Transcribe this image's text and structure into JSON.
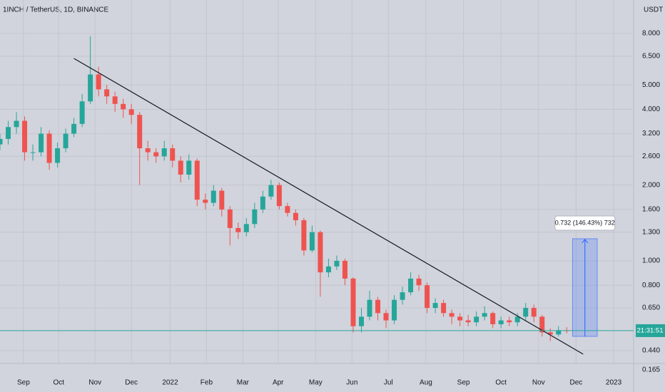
{
  "chart_data": {
    "type": "candlestick",
    "title": "1INCH / TetherUS, 1D, BINANCE",
    "currency": "USDT",
    "x": [
      0,
      7,
      14,
      21,
      28,
      35,
      42,
      49,
      56,
      63,
      70,
      77,
      84,
      91,
      98,
      105,
      112,
      119,
      126,
      133,
      140,
      147,
      154,
      161,
      168,
      175,
      182,
      189,
      196,
      203,
      210,
      217,
      224,
      231,
      238,
      245,
      252,
      259,
      266,
      273,
      280,
      287,
      294,
      301,
      308,
      315,
      322,
      329,
      336,
      343,
      350,
      357,
      364,
      371,
      378,
      385,
      392,
      399,
      406,
      413,
      420,
      427,
      434,
      441,
      448,
      455,
      462,
      469,
      476,
      483
    ],
    "open": [
      2.9,
      3.05,
      3.4,
      3.6,
      2.7,
      2.7,
      3.2,
      2.45,
      2.8,
      3.2,
      3.5,
      4.3,
      5.5,
      4.8,
      4.5,
      4.2,
      4.0,
      3.8,
      2.8,
      2.7,
      2.6,
      2.8,
      2.5,
      2.2,
      2.5,
      1.75,
      1.7,
      1.9,
      1.6,
      1.35,
      1.3,
      1.4,
      1.6,
      1.8,
      2.0,
      1.65,
      1.55,
      1.45,
      1.1,
      1.3,
      0.9,
      0.95,
      1.0,
      0.85,
      0.55,
      0.6,
      0.7,
      0.62,
      0.58,
      0.7,
      0.75,
      0.85,
      0.8,
      0.65,
      0.68,
      0.62,
      0.6,
      0.58,
      0.57,
      0.6,
      0.62,
      0.56,
      0.58,
      0.57,
      0.6,
      0.65,
      0.6,
      0.52,
      0.51,
      0.53
    ],
    "high": [
      3.2,
      3.6,
      3.9,
      3.75,
      2.9,
      3.4,
      3.3,
      2.95,
      3.35,
      3.7,
      4.6,
      7.8,
      5.9,
      5.0,
      4.7,
      4.4,
      4.2,
      3.9,
      3.0,
      2.8,
      3.0,
      2.9,
      2.6,
      2.65,
      2.55,
      1.85,
      2.0,
      1.95,
      1.65,
      1.42,
      1.48,
      1.7,
      1.9,
      2.1,
      2.05,
      1.7,
      1.6,
      1.48,
      1.38,
      1.32,
      1.02,
      1.05,
      1.02,
      0.86,
      0.65,
      0.76,
      0.72,
      0.64,
      0.73,
      0.79,
      0.9,
      0.88,
      0.82,
      0.71,
      0.7,
      0.64,
      0.62,
      0.61,
      0.63,
      0.66,
      0.63,
      0.6,
      0.6,
      0.62,
      0.68,
      0.67,
      0.61,
      0.54,
      0.55,
      0.545
    ],
    "low": [
      2.75,
      2.9,
      3.2,
      2.5,
      2.5,
      2.6,
      2.3,
      2.35,
      2.7,
      3.1,
      3.4,
      4.2,
      4.5,
      4.2,
      3.9,
      3.7,
      3.5,
      2.0,
      2.5,
      2.45,
      2.5,
      2.35,
      2.05,
      2.1,
      1.65,
      1.6,
      1.65,
      1.5,
      1.15,
      1.22,
      1.25,
      1.35,
      1.55,
      1.75,
      1.6,
      1.5,
      1.38,
      1.05,
      1.08,
      0.72,
      0.86,
      0.92,
      0.8,
      0.52,
      0.52,
      0.58,
      0.58,
      0.54,
      0.56,
      0.67,
      0.73,
      0.76,
      0.62,
      0.62,
      0.6,
      0.56,
      0.55,
      0.55,
      0.55,
      0.58,
      0.54,
      0.54,
      0.55,
      0.55,
      0.58,
      0.57,
      0.5,
      0.48,
      0.5,
      0.515
    ],
    "close": [
      3.05,
      3.4,
      3.6,
      2.7,
      2.7,
      3.2,
      2.45,
      2.8,
      3.2,
      3.5,
      4.3,
      5.5,
      4.8,
      4.5,
      4.2,
      4.0,
      3.8,
      2.8,
      2.7,
      2.6,
      2.8,
      2.5,
      2.2,
      2.5,
      1.75,
      1.7,
      1.9,
      1.6,
      1.35,
      1.3,
      1.4,
      1.6,
      1.8,
      2.0,
      1.65,
      1.55,
      1.45,
      1.1,
      1.3,
      0.9,
      0.95,
      1.0,
      0.85,
      0.55,
      0.6,
      0.7,
      0.62,
      0.58,
      0.7,
      0.75,
      0.85,
      0.8,
      0.65,
      0.68,
      0.62,
      0.6,
      0.58,
      0.57,
      0.6,
      0.62,
      0.56,
      0.58,
      0.57,
      0.6,
      0.65,
      0.6,
      0.52,
      0.51,
      0.53,
      0.528
    ],
    "up_color": "#26a69a",
    "down_color": "#ef5350",
    "xlim": [
      0,
      540
    ],
    "xticks": [
      {
        "value": 20,
        "label": "Sep"
      },
      {
        "value": 50,
        "label": "Oct"
      },
      {
        "value": 81,
        "label": "Nov"
      },
      {
        "value": 112,
        "label": "Dec"
      },
      {
        "value": 145,
        "label": "2022"
      },
      {
        "value": 176,
        "label": "Feb"
      },
      {
        "value": 207,
        "label": "Mar"
      },
      {
        "value": 237,
        "label": "Apr"
      },
      {
        "value": 269,
        "label": "May"
      },
      {
        "value": 300,
        "label": "Jun"
      },
      {
        "value": 331,
        "label": "Jul"
      },
      {
        "value": 363,
        "label": "Aug"
      },
      {
        "value": 395,
        "label": "Sep"
      },
      {
        "value": 427,
        "label": "Oct"
      },
      {
        "value": 459,
        "label": "Nov"
      },
      {
        "value": 491,
        "label": "Dec"
      },
      {
        "value": 523,
        "label": "2023"
      }
    ],
    "ylim": [
      0.391,
      10.87
    ],
    "yticks": [
      {
        "value": 8,
        "label": "8.000"
      },
      {
        "value": 6.5,
        "label": "6.500"
      },
      {
        "value": 5,
        "label": "5.000"
      },
      {
        "value": 4,
        "label": "4.000"
      },
      {
        "value": 3.2,
        "label": "3.200"
      },
      {
        "value": 2.6,
        "label": "2.600"
      },
      {
        "value": 2,
        "label": "2.000"
      },
      {
        "value": 1.6,
        "label": "1.600"
      },
      {
        "value": 1.3,
        "label": "1.300"
      },
      {
        "value": 1,
        "label": "1.000"
      },
      {
        "value": 0.8,
        "label": "0.800"
      },
      {
        "value": 0.65,
        "label": "0.650"
      },
      {
        "value": 0.44,
        "label": "0.440"
      }
    ],
    "log_scale": true,
    "grid": true,
    "trendline": {
      "x": [
        63,
        497
      ],
      "y": [
        6.37,
        0.426
      ],
      "color": "#131722"
    },
    "measure": {
      "x": [
        488,
        509
      ],
      "y": [
        0.501,
        1.224
      ],
      "label": "0.732 (146.43%) 732",
      "color": "#2962ff"
    },
    "last_price": {
      "value": 0.528,
      "label": "21:31:51"
    },
    "bottom_label": "0.165"
  }
}
